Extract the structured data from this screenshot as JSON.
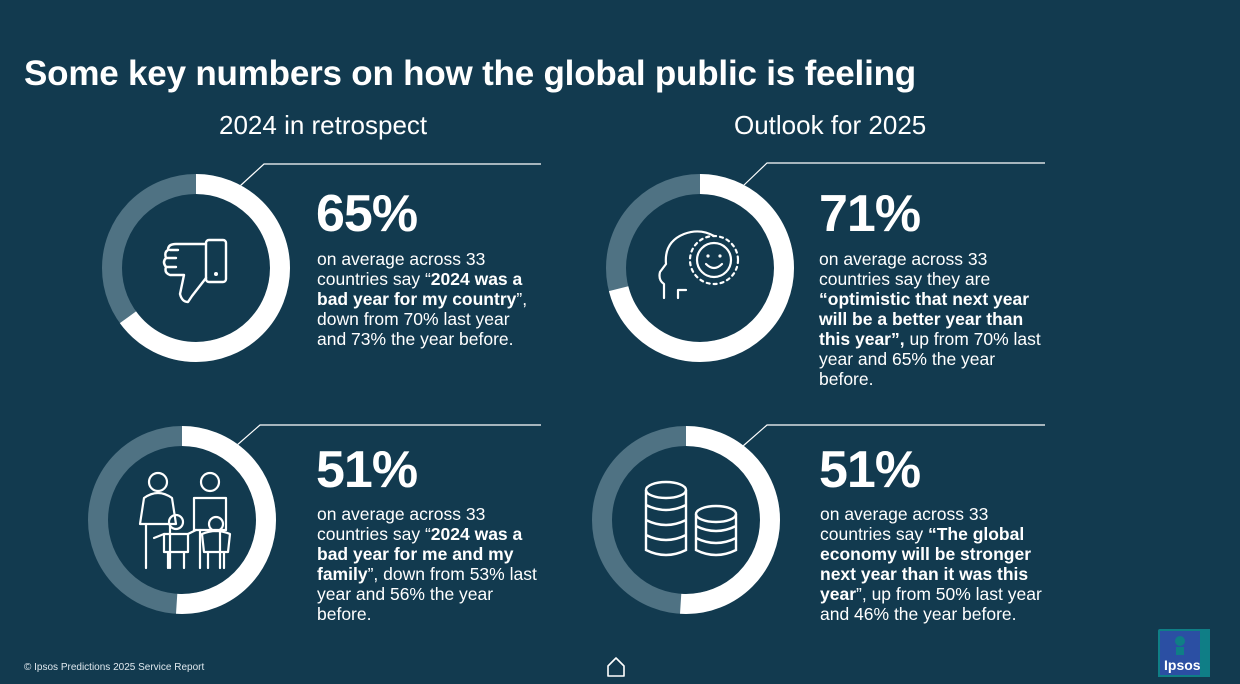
{
  "title": "Some key numbers on how the global public is feeling",
  "columns": {
    "left_heading": "2024 in retrospect",
    "right_heading": "Outlook for 2025"
  },
  "stats": [
    {
      "percent": "65%",
      "value": 0.65,
      "icon": "thumbs-down-icon",
      "text_pre": "on average across 33 countries say  “",
      "text_bold": "2024 was a bad year for my country",
      "text_post": "”, down from 70% last year and 73% the year before."
    },
    {
      "percent": "71%",
      "value": 0.71,
      "icon": "head-sun-icon",
      "text_pre": "on average across 33 countries say  they are ",
      "text_bold": "“optimistic that next year will be a better year than this year”,",
      "text_post": " up from 70% last year and 65% the year before."
    },
    {
      "percent": "51%",
      "value": 0.51,
      "icon": "family-icon",
      "text_pre": "on average across 33 countries say “",
      "text_bold": "2024 was a bad year for me and my family",
      "text_post": "”, down from 53% last year and 56% the year before."
    },
    {
      "percent": "51%",
      "value": 0.51,
      "icon": "coins-icon",
      "text_pre": "on average across 33 countries say ",
      "text_bold": "“The global economy will be stronger next year than it was this year",
      "text_post": "”, up from 50% last year and 46% the year before."
    }
  ],
  "footer": {
    "copyright": "© Ipsos Predictions 2025 Service Report",
    "logo_text": "Ipsos"
  },
  "colors": {
    "background": "#123a4f",
    "ring_fill": "#ffffff",
    "ring_track": "#4f7283"
  }
}
